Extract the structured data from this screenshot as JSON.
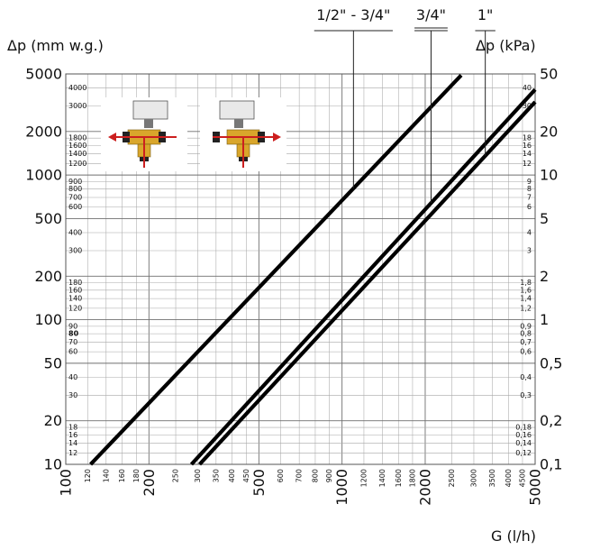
{
  "chart_data": {
    "type": "line",
    "y_label_left": "Δp (mm w.g.)",
    "y_label_right": "Δp (kPa)",
    "x_label": "G (l/h)",
    "x_scale": "log",
    "y_scale": "log",
    "xlim": [
      100,
      5000
    ],
    "ylim": [
      10,
      5000
    ],
    "grid": true,
    "x_ticks_major": [
      "100",
      "200",
      "500",
      "1000",
      "2000",
      "5000"
    ],
    "x_ticks_minor": [
      "120",
      "140",
      "160",
      "180",
      "250",
      "300",
      "350",
      "400",
      "450",
      "600",
      "700",
      "800",
      "900",
      "1200",
      "1400",
      "1600",
      "1800",
      "2500",
      "3000",
      "3500",
      "4000",
      "4500"
    ],
    "y_left_major": [
      "10",
      "20",
      "50",
      "100",
      "200",
      "500",
      "1000",
      "2000",
      "5000"
    ],
    "y_left_minor": [
      "12",
      "14",
      "16",
      "18",
      "30",
      "40",
      "60",
      "70",
      "80",
      "90",
      "120",
      "140",
      "160",
      "180",
      "300",
      "400",
      "600",
      "700",
      "800",
      "900",
      "1200",
      "1400",
      "1600",
      "1800",
      "3000",
      "4000"
    ],
    "y_left_bold": [
      "80"
    ],
    "y_right_major": [
      "0,1",
      "0,2",
      "0,5",
      "1",
      "2",
      "5",
      "10",
      "20",
      "50"
    ],
    "y_right_minor": [
      "0,12",
      "0,14",
      "0,16",
      "0,18",
      "0,3",
      "0,4",
      "0,6",
      "0,7",
      "0,8",
      "0,9",
      "1,2",
      "1,4",
      "1,6",
      "1,8",
      "3",
      "4",
      "6",
      "7",
      "8",
      "9",
      "12",
      "14",
      "16",
      "18",
      "30",
      "40"
    ],
    "series": [
      {
        "name": "1/2\" - 3/4\"",
        "x": [
          123,
          2700
        ],
        "y": [
          10,
          4900
        ],
        "label_at_x": 1100
      },
      {
        "name": "3/4\"",
        "x": [
          285,
          5000
        ],
        "y": [
          10,
          3900
        ],
        "label_at_x": 2100
      },
      {
        "name": "1\"",
        "x": [
          305,
          5000
        ],
        "y": [
          10,
          3200
        ],
        "label_at_x": 3300
      }
    ]
  },
  "colors": {
    "line": "#000000",
    "grid_major": "#6f6f6f",
    "grid_minor": "#a8a8a8",
    "arrow": "#cc1f1f"
  },
  "icons": [
    "valve-flow-left-icon",
    "valve-flow-right-icon"
  ]
}
